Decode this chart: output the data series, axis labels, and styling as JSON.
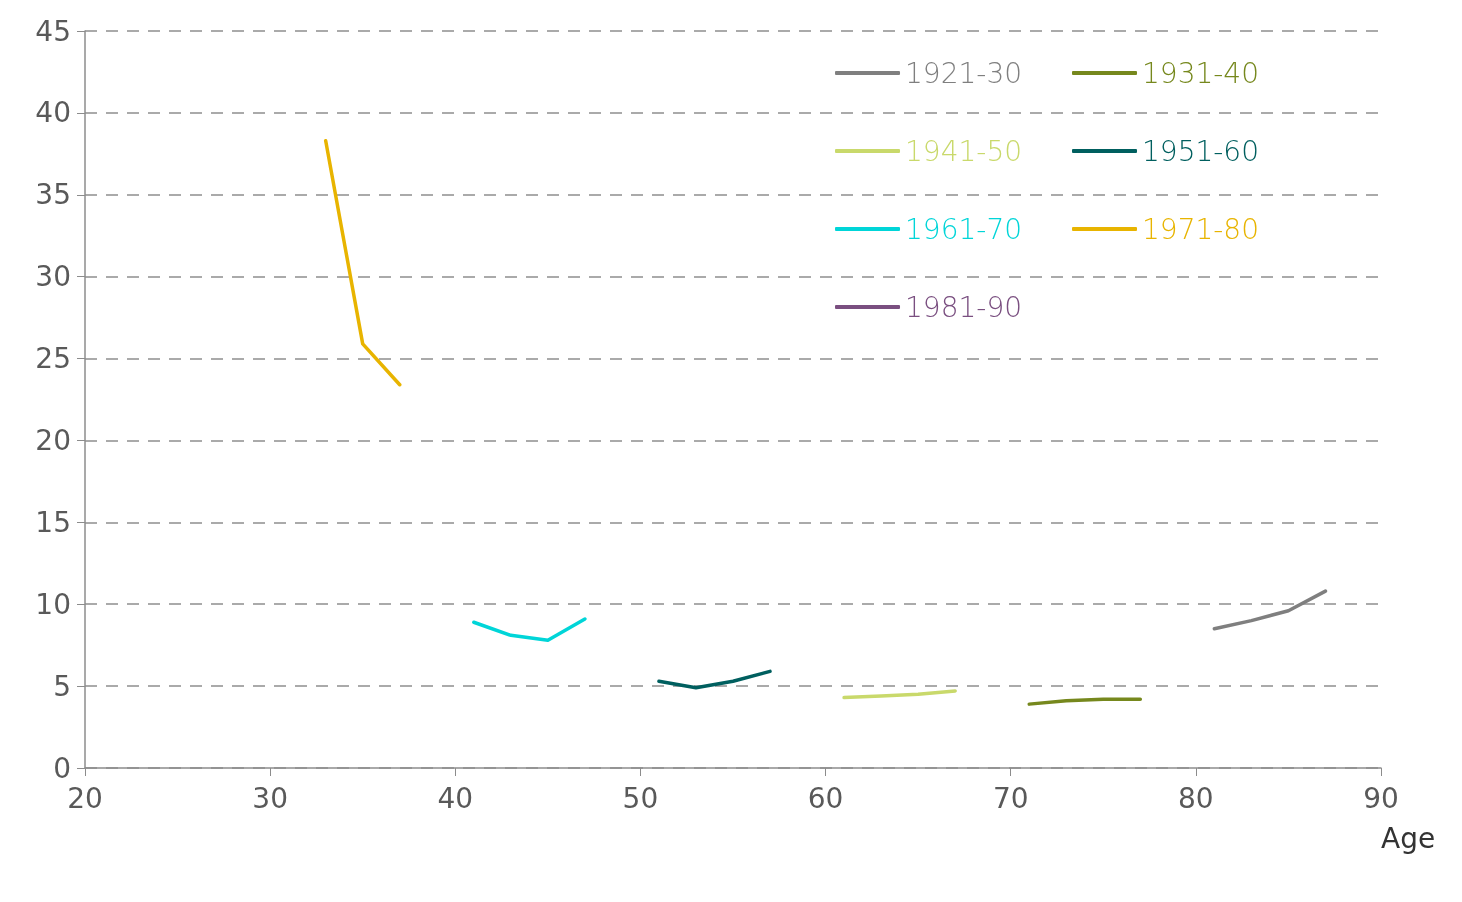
{
  "chart_data": {
    "type": "line",
    "xlabel": "Age",
    "xlim": [
      20,
      90
    ],
    "xticks": [
      20,
      30,
      40,
      50,
      60,
      70,
      80,
      90
    ],
    "ylim": [
      0,
      45
    ],
    "yticks": [
      0,
      5,
      10,
      15,
      20,
      25,
      30,
      35,
      40,
      45
    ],
    "grid": "y",
    "legend": "top right",
    "marker": "none",
    "line_style": "solid",
    "series": [
      {
        "name": "1921-30",
        "color": "#7f7f7f",
        "x": [
          81,
          83,
          85,
          87
        ],
        "values": [
          8.5,
          9.0,
          9.6,
          10.8
        ]
      },
      {
        "name": "1931-40",
        "color": "#76881d",
        "x": [
          71,
          73,
          75,
          77
        ],
        "values": [
          3.9,
          4.1,
          4.2,
          4.2
        ]
      },
      {
        "name": "1941-50",
        "color": "#c9d96b",
        "x": [
          61,
          63,
          65,
          67
        ],
        "values": [
          4.3,
          4.4,
          4.5,
          4.7
        ]
      },
      {
        "name": "1951-60",
        "color": "#005f5f",
        "x": [
          51,
          53,
          55,
          57
        ],
        "values": [
          5.3,
          4.9,
          5.3,
          5.9
        ]
      },
      {
        "name": "1961-70",
        "color": "#00d5d8",
        "x": [
          41,
          43,
          45,
          47
        ],
        "values": [
          8.9,
          8.1,
          7.8,
          9.1
        ]
      },
      {
        "name": "1971-80",
        "color": "#e8b400",
        "x": [
          33,
          35,
          37
        ],
        "values": [
          38.3,
          25.9,
          23.4
        ]
      },
      {
        "name": "1981-90",
        "color": "#7a4f80"
      }
    ]
  }
}
